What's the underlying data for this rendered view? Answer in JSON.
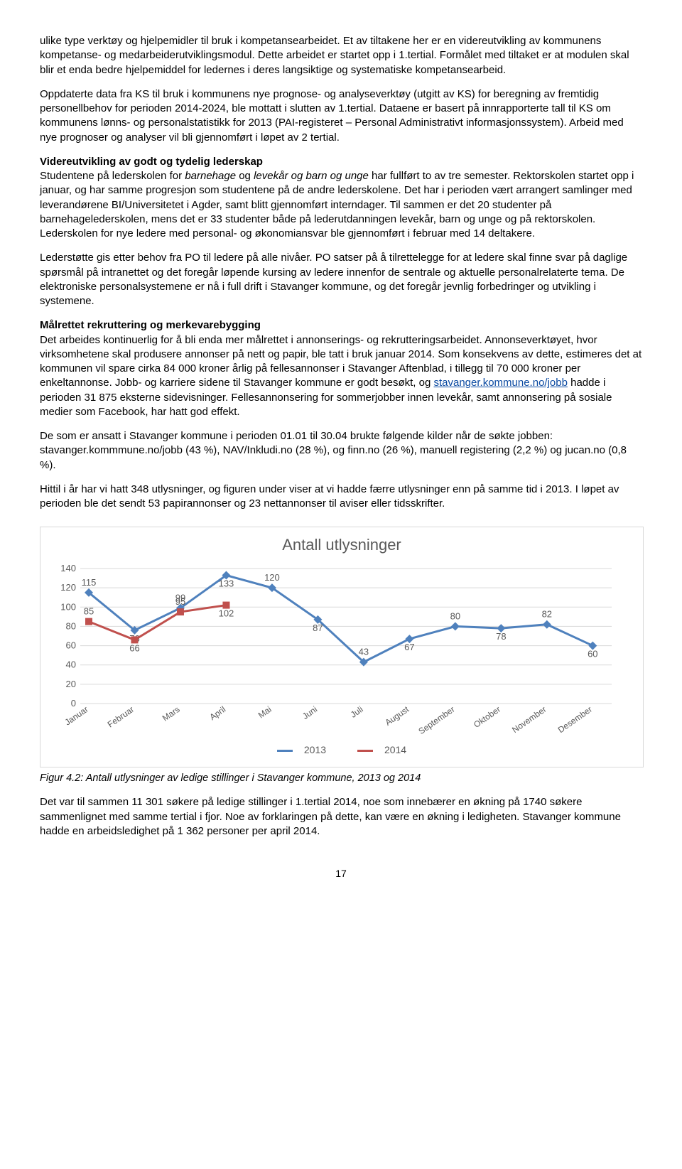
{
  "paragraphs": {
    "p1": "ulike type verktøy og hjelpemidler til bruk i kompetansearbeidet. Et av tiltakene her er en videreutvikling av kommunens kompetanse- og medarbeiderutviklingsmodul. Dette arbeidet er startet opp i 1.tertial. Formålet med tiltaket er at modulen skal blir et enda bedre hjelpemiddel for ledernes i deres langsiktige og systematiske kompetansearbeid.",
    "p2": "Oppdaterte data fra KS til bruk i kommunens nye prognose- og analyseverktøy (utgitt av KS) for beregning av fremtidig personellbehov for perioden 2014-2024, ble mottatt i slutten av 1.tertial. Dataene er basert på innrapporterte tall til KS om kommunens lønns- og personalstatistikk for 2013 (PAI-registeret – Personal Administrativt informasjonssystem). Arbeid med nye prognoser og analyser vil bli gjennomført i løpet av 2 tertial.",
    "h_leadership": "Videreutvikling av godt og tydelig lederskap",
    "p3a": "Studentene på lederskolen for ",
    "p3b_italic": "barnehage",
    "p3c": " og ",
    "p3d_italic": "levekår og barn og unge",
    "p3e": " har fullført to av tre semester. Rektorskolen startet opp i januar, og har samme progresjon som studentene på de andre lederskolene. Det har i perioden vært arrangert samlinger med leverandørene BI/Universitetet i Agder, samt blitt gjennomført interndager. Til sammen er det 20 studenter på barnehagelederskolen, mens det er 33 studenter både på lederutdanningen levekår, barn og unge og på rektorskolen. Lederskolen for nye ledere med personal- og økonomiansvar ble gjennomført i februar med 14 deltakere.",
    "p4": "Lederstøtte gis etter behov fra PO til ledere på alle nivåer. PO satser på å tilrettelegge for at ledere skal finne svar på daglige spørsmål på intranettet og det foregår løpende kursing av ledere innenfor de sentrale og aktuelle personalrelaterte tema. De elektroniske personalsystemene er nå i full drift i Stavanger kommune, og det foregår jevnlig forbedringer og utvikling i systemene.",
    "h_recruit": "Målrettet rekruttering og merkevarebygging",
    "p5a": "Det arbeides kontinuerlig for å bli enda mer målrettet i annonserings- og rekrutteringsarbeidet. Annonseverktøyet, hvor virksomhetene skal produsere annonser på nett og papir, ble tatt i bruk januar 2014. Som konsekvens av dette, estimeres det at kommunen vil spare cirka 84 000 kroner årlig på fellesannonser i Stavanger Aftenblad, i tillegg til 70 000 kroner per enkeltannonse. Jobb- og karriere sidene til Stavanger kommune er godt besøkt, og ",
    "p5_link": "stavanger.kommune.no/jobb",
    "p5b": " hadde i perioden 31 875 eksterne sidevisninger. Fellesannonsering for sommerjobber innen levekår, samt annonsering på sosiale medier som Facebook, har hatt god effekt.",
    "p6": "De som er ansatt i Stavanger kommune i perioden 01.01 til 30.04 brukte følgende kilder når de søkte jobben: stavanger.kommmune.no/jobb (43 %), NAV/Inkludi.no (28 %), og finn.no (26 %), manuell registering (2,2 %) og jucan.no (0,8 %).",
    "p7": "Hittil i år har vi hatt 348 utlysninger, og figuren under viser at vi hadde færre utlysninger enn på samme tid i 2013. I løpet av perioden ble det sendt 53 papirannonser og 23 nettannonser til aviser eller tidsskrifter.",
    "figcap": "Figur 4.2: Antall utlysninger av ledige stillinger i Stavanger kommune, 2013 og 2014",
    "p8": "Det var til sammen 11 301 søkere på ledige stillinger i 1.tertial 2014, noe som innebærer en økning på 1740 søkere sammenlignet med samme tertial i fjor. Noe av forklaringen på dette, kan være en økning i ledigheten. Stavanger kommune hadde en arbeidsledighet på 1 362 personer per april 2014.",
    "pagenum": "17"
  },
  "chart": {
    "title": "Antall utlysninger",
    "yticks": [
      0,
      20,
      40,
      60,
      80,
      100,
      120,
      140
    ],
    "ymax": 140,
    "months": [
      "Januar",
      "Februar",
      "Mars",
      "April",
      "Mai",
      "Juni",
      "Juli",
      "August",
      "September",
      "Oktober",
      "November",
      "Desember"
    ],
    "series2013": [
      115,
      76,
      99,
      133,
      120,
      87,
      43,
      67,
      80,
      78,
      82,
      60
    ],
    "series2014": [
      85,
      66,
      95,
      102
    ],
    "color2013": "#4f81bd",
    "color2014": "#c0504d",
    "grid_color": "#d9d9d9",
    "legend": {
      "s1": "2013",
      "s2": "2014"
    }
  }
}
